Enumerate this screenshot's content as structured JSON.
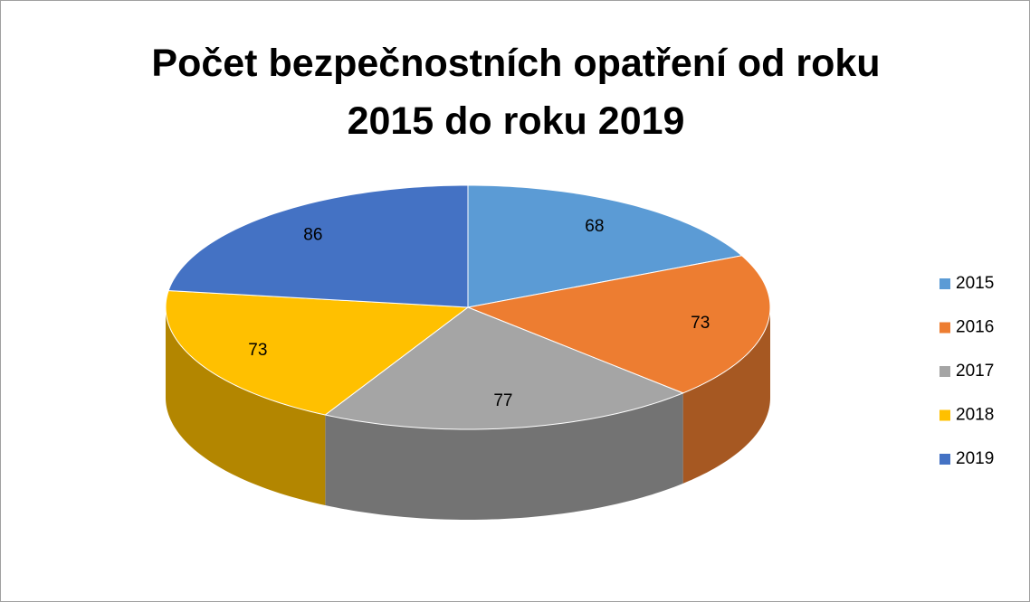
{
  "chart_data": {
    "type": "pie3d",
    "title": "Počet bezpečnostních opatření od roku 2015 do roku 2019",
    "categories": [
      "2015",
      "2016",
      "2017",
      "2018",
      "2019"
    ],
    "values": [
      68,
      73,
      77,
      73,
      86
    ],
    "colors": [
      "#5b9bd5",
      "#ed7d31",
      "#a5a5a5",
      "#ffc000",
      "#4472c4"
    ],
    "legend": "right"
  }
}
